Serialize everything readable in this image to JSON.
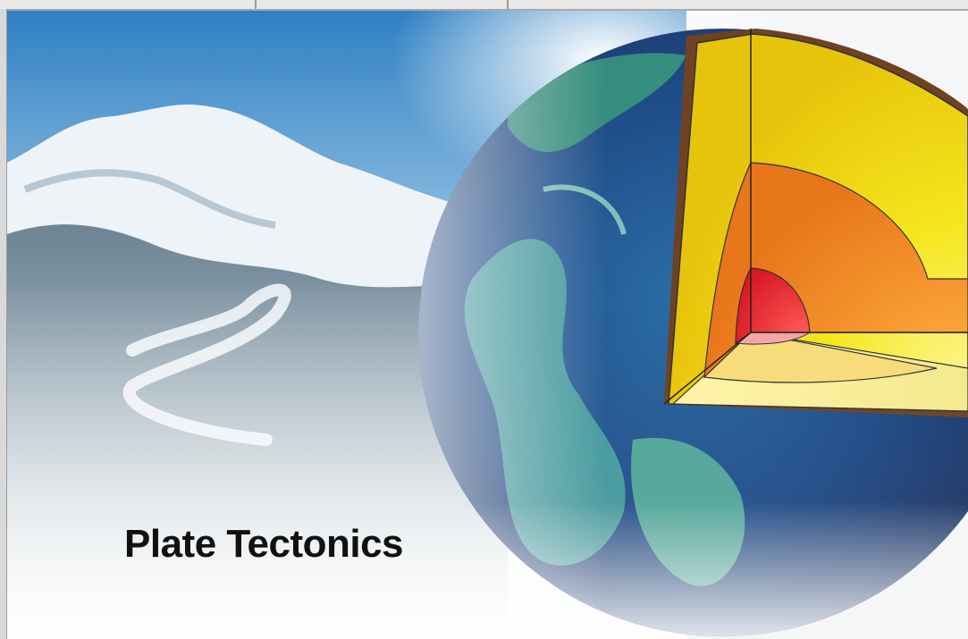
{
  "slide": {
    "title": "Plate Tectonics"
  },
  "colors": {
    "sky": "#3b8bcc",
    "snow": "#f2f5f8",
    "ocean": "#1f4f8a",
    "crust": "#7a4a24",
    "mantle": "#f2e21a",
    "outer_core": "#f58a1e",
    "inner_core": "#e8202a"
  },
  "icons": {
    "mountain": "snow-capped-mountain-image",
    "earth": "earth-cutaway-illustration"
  }
}
